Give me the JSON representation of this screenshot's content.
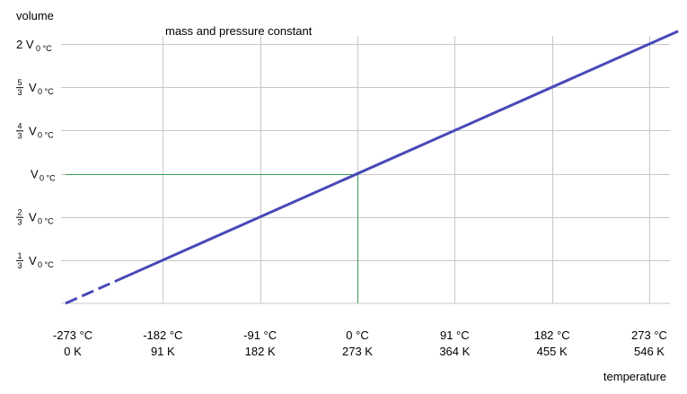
{
  "chart_data": {
    "type": "line",
    "title": "mass and pressure constant",
    "ylabel": "volume",
    "xlabel": "temperature",
    "x_ticks": [
      {
        "c": "-273 °C",
        "k": "0 K",
        "value": -273
      },
      {
        "c": "-182 °C",
        "k": "91 K",
        "value": -182
      },
      {
        "c": "-91 °C",
        "k": "182 K",
        "value": -91
      },
      {
        "c": "0 °C",
        "k": "273 K",
        "value": 0
      },
      {
        "c": "91 °C",
        "k": "364 K",
        "value": 91
      },
      {
        "c": "182 °C",
        "k": "455 K",
        "value": 182
      },
      {
        "c": "273 °C",
        "k": "546 K",
        "value": 273
      }
    ],
    "y_ticks": [
      {
        "value": 0.3333,
        "num": "1",
        "den": "3",
        "label": "V",
        "sub": "0 °C"
      },
      {
        "value": 0.6667,
        "num": "2",
        "den": "3",
        "label": "V",
        "sub": "0 °C"
      },
      {
        "value": 1.0,
        "num": "",
        "den": "",
        "label": "V",
        "sub": "0 °C"
      },
      {
        "value": 1.3333,
        "num": "4",
        "den": "3",
        "label": "V",
        "sub": "0 °C"
      },
      {
        "value": 1.6667,
        "num": "5",
        "den": "3",
        "label": "V",
        "sub": "0 °C"
      },
      {
        "value": 2.0,
        "num": "",
        "den": "",
        "label": "2 V",
        "sub": "0 °C"
      }
    ],
    "xlim": [
      -273,
      273
    ],
    "ylim": [
      0,
      2
    ],
    "grid": true,
    "series": [
      {
        "color": "#4848b8",
        "solid": {
          "x": [
            -224,
            300
          ],
          "y": [
            0.1795,
            2.0989
          ]
        },
        "dashed": {
          "x": [
            -273,
            -224
          ],
          "y": [
            0.0,
            0.1795
          ]
        }
      }
    ],
    "reference_point": {
      "x": 0,
      "y": 1.0,
      "color": "#3a9a5a"
    }
  }
}
